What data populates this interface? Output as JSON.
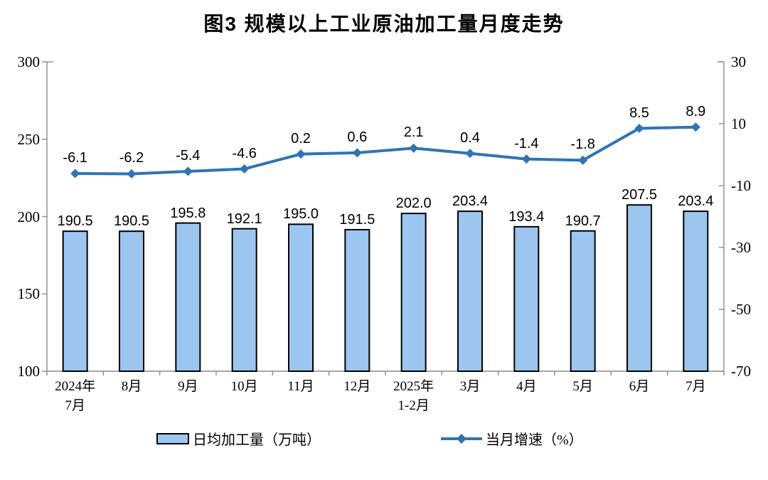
{
  "title": "图3  规模以上工业原油加工量月度走势",
  "chart_data": {
    "type": "bar+line",
    "categories": [
      [
        "2024年",
        "7月"
      ],
      [
        "8月"
      ],
      [
        "9月"
      ],
      [
        "10月"
      ],
      [
        "11月"
      ],
      [
        "12月"
      ],
      [
        "2025年",
        "1-2月"
      ],
      [
        "3月"
      ],
      [
        "4月"
      ],
      [
        "5月"
      ],
      [
        "6月"
      ],
      [
        "7月"
      ]
    ],
    "series": [
      {
        "name": "日均加工量（万吨）",
        "type": "bar",
        "axis": "left",
        "values": [
          190.5,
          190.5,
          195.8,
          192.1,
          195.0,
          191.5,
          202.0,
          203.4,
          193.4,
          190.7,
          207.5,
          203.4
        ],
        "labels": [
          "190.5",
          "190.5",
          "195.8",
          "192.1",
          "195.0",
          "191.5",
          "202.0",
          "203.4",
          "193.4",
          "190.7",
          "207.5",
          "203.4"
        ]
      },
      {
        "name": "当月增速（%）",
        "type": "line",
        "axis": "right",
        "values": [
          -6.1,
          -6.2,
          -5.4,
          -4.6,
          0.2,
          0.6,
          2.1,
          0.4,
          -1.4,
          -1.8,
          8.5,
          8.9
        ],
        "labels": [
          "-6.1",
          "-6.2",
          "-5.4",
          "-4.6",
          "0.2",
          "0.6",
          "2.1",
          "0.4",
          "-1.4",
          "-1.8",
          "8.5",
          "8.9"
        ]
      }
    ],
    "y_left": {
      "min": 100,
      "max": 300,
      "step": 50,
      "ticks": [
        "300",
        "250",
        "200",
        "150",
        "100"
      ]
    },
    "y_right": {
      "min": -70,
      "max": 30,
      "step": 20,
      "ticks": [
        "30",
        "10",
        "-10",
        "-30",
        "-50",
        "-70"
      ]
    },
    "grid": "off",
    "legend_position": "bottom",
    "colors": {
      "bar_fill": "#9CC6F0",
      "bar_border": "#000000",
      "line": "#2E74B5",
      "axis": "#8C8C8C",
      "text": "#000000"
    },
    "legend": [
      {
        "label": "日均加工量（万吨）",
        "type": "bar"
      },
      {
        "label": "当月增速（%）",
        "type": "line"
      }
    ]
  }
}
